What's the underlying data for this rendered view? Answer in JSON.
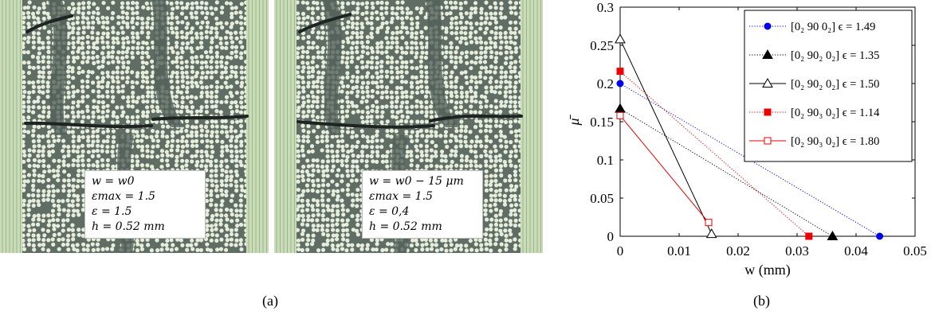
{
  "panel_a": {
    "caption": "(a)",
    "left_image": {
      "lines": [
        "w = w0",
        "εmax = 1.5",
        "ε = 1.5",
        "h = 0.52 mm"
      ]
    },
    "right_image": {
      "lines": [
        "w = w0 − 15 μm",
        "εmax = 1.5",
        "ε = 0,4",
        "h = 0.52 mm"
      ]
    }
  },
  "panel_b": {
    "caption": "(b)"
  },
  "colors": {
    "blue": "#0000ee",
    "black": "#000000",
    "red": "#ee0000",
    "fiber": "#e6eddc",
    "matrix": "#5f6d64"
  },
  "chart_data": {
    "type": "line",
    "xlabel": "w (mm)",
    "ylabel": "μ̄",
    "xlim": [
      0,
      0.05
    ],
    "ylim": [
      0,
      0.3
    ],
    "x_ticks": [
      "0",
      "0.01",
      "0.02",
      "0.03",
      "0.04",
      "0.05"
    ],
    "y_ticks": [
      "0",
      "0.05",
      "0.1",
      "0.15",
      "0.2",
      "0.25",
      "0.3"
    ],
    "legend_position": "top-right",
    "grid": false,
    "series": [
      {
        "name": "[0₂ 90 0₂] ϵ = 1.49",
        "color": "#0000ee",
        "line": "dotted",
        "marker": "circle-filled",
        "points": [
          [
            0,
            0.2
          ],
          [
            0.044,
            0
          ]
        ]
      },
      {
        "name": "[0₂ 90₂ 0₂] ϵ = 1.35",
        "color": "#000000",
        "line": "dotted",
        "marker": "triangle-filled",
        "points": [
          [
            0,
            0.167
          ],
          [
            0.036,
            0
          ]
        ]
      },
      {
        "name": "[0₂ 90₂ 0₂] ϵ = 1.50",
        "color": "#000000",
        "line": "solid",
        "marker": "triangle-open",
        "points": [
          [
            0,
            0.258
          ],
          [
            0.0155,
            0.003
          ]
        ]
      },
      {
        "name": "[0₂ 90₃ 0₂] ϵ = 1.14",
        "color": "#ee0000",
        "line": "dotted",
        "marker": "square-filled",
        "points": [
          [
            0,
            0.216
          ],
          [
            0.032,
            0
          ]
        ]
      },
      {
        "name": "[0₂ 90₃ 0₂] ϵ = 1.80",
        "color": "#ee0000",
        "line": "solid",
        "marker": "square-open",
        "points": [
          [
            0,
            0.158
          ],
          [
            0.015,
            0.018
          ]
        ]
      }
    ]
  }
}
